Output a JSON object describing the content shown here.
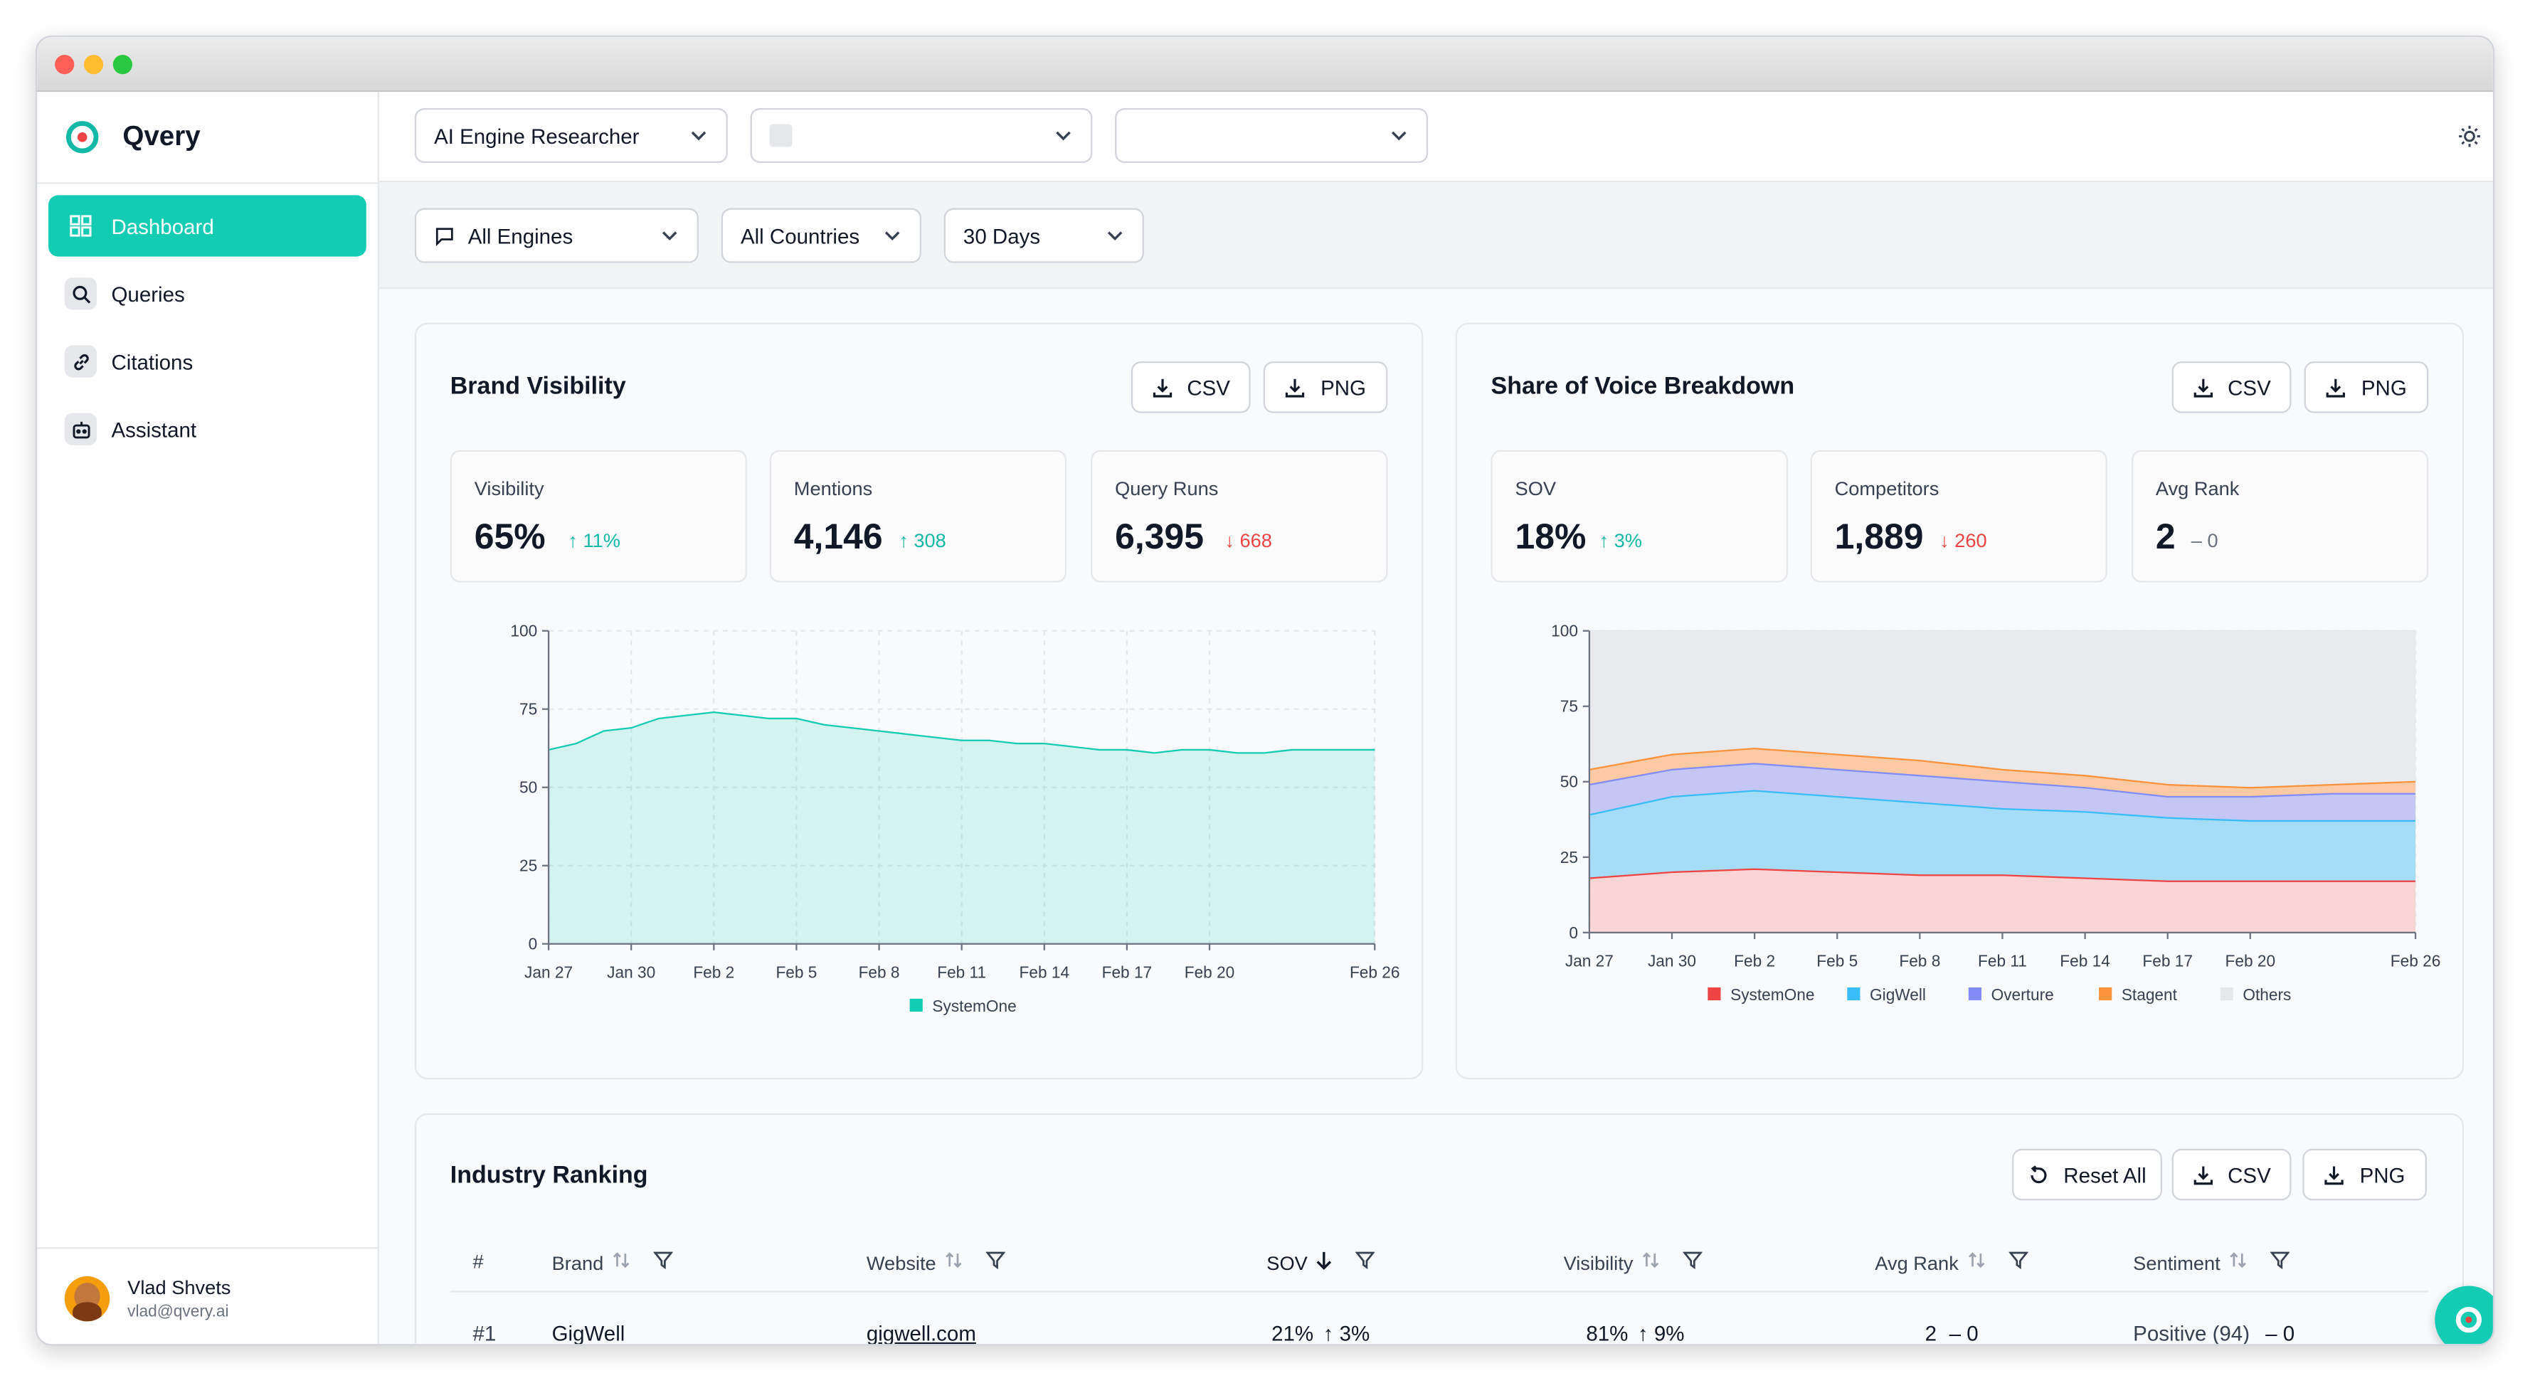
{
  "app": {
    "name": "Qvery"
  },
  "sidebar": {
    "items": [
      {
        "label": "Dashboard"
      },
      {
        "label": "Queries"
      },
      {
        "label": "Citations"
      },
      {
        "label": "Assistant"
      }
    ]
  },
  "user": {
    "name": "Vlad Shvets",
    "email": "vlad@qvery.ai"
  },
  "topbar": {
    "project_select": "AI Engine Researcher"
  },
  "filters": {
    "engines": "All Engines",
    "countries": "All Countries",
    "period": "30 Days"
  },
  "buttons": {
    "csv": "CSV",
    "png": "PNG",
    "reset_all": "Reset All"
  },
  "brand_visibility": {
    "title": "Brand Visibility",
    "stats": [
      {
        "label": "Visibility",
        "value": "65%",
        "delta": "↑ 11%",
        "dir": "up"
      },
      {
        "label": "Mentions",
        "value": "4,146",
        "delta": "↑ 308",
        "dir": "up"
      },
      {
        "label": "Query Runs",
        "value": "6,395",
        "delta": "↓ 668",
        "dir": "down"
      }
    ]
  },
  "share_of_voice": {
    "title": "Share of Voice Breakdown",
    "stats": [
      {
        "label": "SOV",
        "value": "18%",
        "delta": "↑ 3%",
        "dir": "up"
      },
      {
        "label": "Competitors",
        "value": "1,889",
        "delta": "↓ 260",
        "dir": "down"
      },
      {
        "label": "Avg Rank",
        "value": "2",
        "delta": "– 0",
        "dir": "flat"
      }
    ]
  },
  "chart_data": [
    {
      "type": "area",
      "title": "Brand Visibility",
      "xlabel": "",
      "ylabel": "",
      "ylim": [
        0,
        100
      ],
      "yticks": [
        0,
        25,
        50,
        75,
        100
      ],
      "xticks": [
        "Jan 27",
        "Jan 30",
        "Feb 2",
        "Feb 5",
        "Feb 8",
        "Feb 11",
        "Feb 14",
        "Feb 17",
        "Feb 20",
        "Feb 26"
      ],
      "x": [
        "Jan 27",
        "Jan 28",
        "Jan 29",
        "Jan 30",
        "Jan 31",
        "Feb 1",
        "Feb 2",
        "Feb 3",
        "Feb 4",
        "Feb 5",
        "Feb 6",
        "Feb 7",
        "Feb 8",
        "Feb 9",
        "Feb 10",
        "Feb 11",
        "Feb 12",
        "Feb 13",
        "Feb 14",
        "Feb 15",
        "Feb 16",
        "Feb 17",
        "Feb 18",
        "Feb 19",
        "Feb 20",
        "Feb 21",
        "Feb 22",
        "Feb 23",
        "Feb 24",
        "Feb 25",
        "Feb 26"
      ],
      "series": [
        {
          "name": "SystemOne",
          "color": "#14cbb3",
          "values": [
            62,
            64,
            68,
            69,
            72,
            73,
            74,
            73,
            72,
            72,
            70,
            69,
            68,
            67,
            66,
            65,
            65,
            64,
            64,
            63,
            62,
            62,
            61,
            62,
            62,
            61,
            61,
            62,
            62,
            62,
            62
          ]
        }
      ],
      "legend": "bottom"
    },
    {
      "type": "area",
      "stacked": true,
      "title": "Share of Voice Breakdown",
      "ylim": [
        0,
        100
      ],
      "yticks": [
        0,
        25,
        50,
        75,
        100
      ],
      "xticks": [
        "Jan 27",
        "Jan 30",
        "Feb 2",
        "Feb 5",
        "Feb 8",
        "Feb 11",
        "Feb 14",
        "Feb 17",
        "Feb 20",
        "Feb 26"
      ],
      "x": [
        "Jan 27",
        "Jan 30",
        "Feb 2",
        "Feb 5",
        "Feb 8",
        "Feb 11",
        "Feb 14",
        "Feb 17",
        "Feb 20",
        "Feb 23",
        "Feb 26"
      ],
      "series": [
        {
          "name": "SystemOne",
          "color": "#ef4444",
          "fill": "#fbd5d5",
          "values": [
            18,
            20,
            21,
            20,
            19,
            19,
            18,
            17,
            17,
            17,
            17
          ]
        },
        {
          "name": "GigWell",
          "color": "#38bdf8",
          "fill": "#a5dcf7",
          "values": [
            21,
            25,
            26,
            25,
            24,
            22,
            22,
            21,
            20,
            20,
            20
          ]
        },
        {
          "name": "Overture",
          "color": "#818cf8",
          "fill": "#c4c7f4",
          "values": [
            10,
            9,
            9,
            9,
            9,
            9,
            8,
            7,
            8,
            9,
            9
          ]
        },
        {
          "name": "Stagent",
          "color": "#fb923c",
          "fill": "#fbc9a4",
          "values": [
            5,
            5,
            5,
            5,
            5,
            4,
            4,
            4,
            3,
            3,
            4
          ]
        },
        {
          "name": "Others",
          "color": "#e5e7eb",
          "fill": "#e9eaee",
          "values": [
            46,
            41,
            39,
            41,
            43,
            46,
            48,
            51,
            52,
            51,
            50
          ]
        }
      ],
      "legend": "bottom"
    }
  ],
  "industry_ranking": {
    "title": "Industry Ranking",
    "columns": [
      "#",
      "Brand",
      "Website",
      "SOV",
      "Visibility",
      "Avg Rank",
      "Sentiment"
    ],
    "rows": [
      {
        "rank": "#1",
        "brand": "GigWell",
        "website": "gigwell.com",
        "sov": "21%",
        "sov_delta": "↑ 3%",
        "visibility": "81%",
        "vis_delta": "↑ 9%",
        "avg_rank": "2",
        "rank_delta": "– 0",
        "sentiment": "Positive (94)",
        "sent_delta": "– 0"
      }
    ]
  }
}
